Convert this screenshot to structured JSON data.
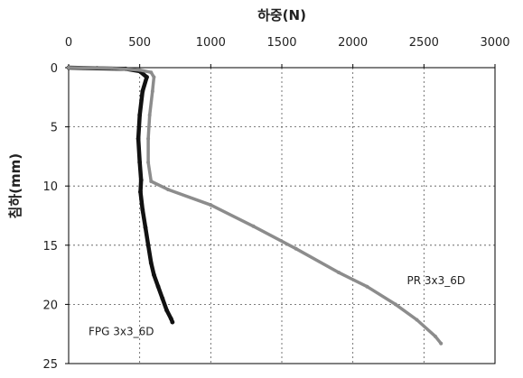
{
  "chart_data": {
    "type": "line",
    "title": "",
    "xlabel": "하중(N)",
    "ylabel": "침하(mm)",
    "xlim": [
      0,
      3000
    ],
    "ylim": [
      0,
      25
    ],
    "x_ticks": [
      "0",
      "500",
      "1000",
      "1500",
      "2000",
      "2500",
      "3000"
    ],
    "y_ticks": [
      "0",
      "5",
      "10",
      "15",
      "20",
      "25"
    ],
    "x_axis_position": "top",
    "y_axis_inverted": true,
    "grid": true,
    "legend": "none",
    "series": [
      {
        "name": "FPG 3x3_6D",
        "color": "#111111",
        "x": [
          0,
          200,
          400,
          500,
          550,
          520,
          500,
          490,
          500,
          510,
          505,
          520,
          540,
          560,
          580,
          600,
          630,
          660,
          690,
          720,
          730
        ],
        "y": [
          0,
          0.05,
          0.1,
          0.3,
          0.8,
          2,
          4,
          6,
          8,
          9.5,
          10.5,
          12,
          13.5,
          15,
          16.5,
          17.5,
          18.5,
          19.5,
          20.5,
          21.2,
          21.5
        ]
      },
      {
        "name": "PR 3x3_6D",
        "color": "#8c8c8c",
        "x": [
          0,
          300,
          500,
          580,
          600,
          590,
          570,
          560,
          560,
          580,
          700,
          1000,
          1300,
          1600,
          1900,
          2100,
          2300,
          2450,
          2580,
          2620
        ],
        "y": [
          0,
          0.05,
          0.2,
          0.4,
          0.8,
          2,
          4,
          6,
          8,
          9.6,
          10.3,
          11.6,
          13.4,
          15.3,
          17.3,
          18.5,
          20,
          21.3,
          22.7,
          23.3
        ]
      }
    ],
    "annotations": [
      {
        "text": "PR 3x3_6D",
        "x": 2380,
        "y": 18.3
      },
      {
        "text": "FPG 3x3_6D",
        "x": 140,
        "y": 22.6
      }
    ]
  }
}
